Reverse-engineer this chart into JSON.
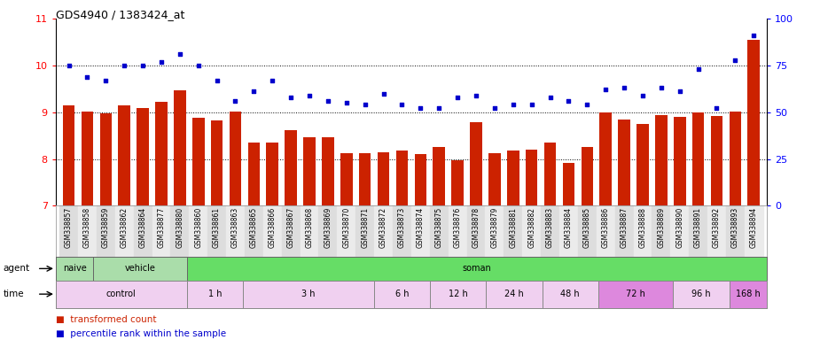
{
  "title": "GDS4940 / 1383424_at",
  "samples": [
    "GSM338857",
    "GSM338858",
    "GSM338859",
    "GSM338862",
    "GSM338864",
    "GSM338877",
    "GSM338880",
    "GSM338860",
    "GSM338861",
    "GSM338863",
    "GSM338865",
    "GSM338866",
    "GSM338867",
    "GSM338868",
    "GSM338869",
    "GSM338870",
    "GSM338871",
    "GSM338872",
    "GSM338873",
    "GSM338874",
    "GSM338875",
    "GSM338876",
    "GSM338878",
    "GSM338879",
    "GSM338881",
    "GSM338882",
    "GSM338883",
    "GSM338884",
    "GSM338885",
    "GSM338886",
    "GSM338887",
    "GSM338888",
    "GSM338889",
    "GSM338890",
    "GSM338891",
    "GSM338892",
    "GSM338893",
    "GSM338894"
  ],
  "bar_values": [
    9.15,
    9.02,
    8.98,
    9.15,
    9.08,
    9.22,
    9.47,
    8.88,
    8.83,
    9.02,
    8.35,
    8.35,
    8.62,
    8.47,
    8.47,
    8.12,
    8.12,
    8.15,
    8.18,
    8.1,
    8.25,
    7.98,
    8.78,
    8.12,
    8.18,
    8.2,
    8.35,
    7.92,
    8.25,
    9.0,
    8.85,
    8.75,
    8.93,
    8.9,
    9.0,
    8.92,
    9.02,
    10.55
  ],
  "percentile_values_pct": [
    75,
    69,
    67,
    75,
    75,
    77,
    81,
    75,
    67,
    56,
    61,
    67,
    58,
    59,
    56,
    55,
    54,
    60,
    54,
    52,
    52,
    58,
    59,
    52,
    54,
    54,
    58,
    56,
    54,
    62,
    63,
    59,
    63,
    61,
    73,
    52,
    78,
    91
  ],
  "ylim_left": [
    7,
    11
  ],
  "ylim_right": [
    0,
    100
  ],
  "yticks_left": [
    7,
    8,
    9,
    10,
    11
  ],
  "yticks_right": [
    0,
    25,
    50,
    75,
    100
  ],
  "bar_color": "#cc2200",
  "dot_color": "#0000cc",
  "naive_color": "#aaddaa",
  "vehicle_color": "#aaddaa",
  "soman_color": "#66dd66",
  "control_color": "#f0d8f0",
  "time_light_color": "#f0d0f0",
  "time_dark_color": "#dd88dd",
  "agent_groups": [
    {
      "label": "naive",
      "start": 0,
      "end": 2
    },
    {
      "label": "vehicle",
      "start": 2,
      "end": 7
    },
    {
      "label": "soman",
      "start": 7,
      "end": 38
    }
  ],
  "time_groups": [
    {
      "label": "control",
      "start": 0,
      "end": 7,
      "dark": false
    },
    {
      "label": "1 h",
      "start": 7,
      "end": 10,
      "dark": false
    },
    {
      "label": "3 h",
      "start": 10,
      "end": 17,
      "dark": false
    },
    {
      "label": "6 h",
      "start": 17,
      "end": 20,
      "dark": false
    },
    {
      "label": "12 h",
      "start": 20,
      "end": 23,
      "dark": false
    },
    {
      "label": "24 h",
      "start": 23,
      "end": 26,
      "dark": false
    },
    {
      "label": "48 h",
      "start": 26,
      "end": 29,
      "dark": false
    },
    {
      "label": "72 h",
      "start": 29,
      "end": 33,
      "dark": true
    },
    {
      "label": "96 h",
      "start": 33,
      "end": 36,
      "dark": false
    },
    {
      "label": "168 h",
      "start": 36,
      "end": 38,
      "dark": true
    }
  ]
}
